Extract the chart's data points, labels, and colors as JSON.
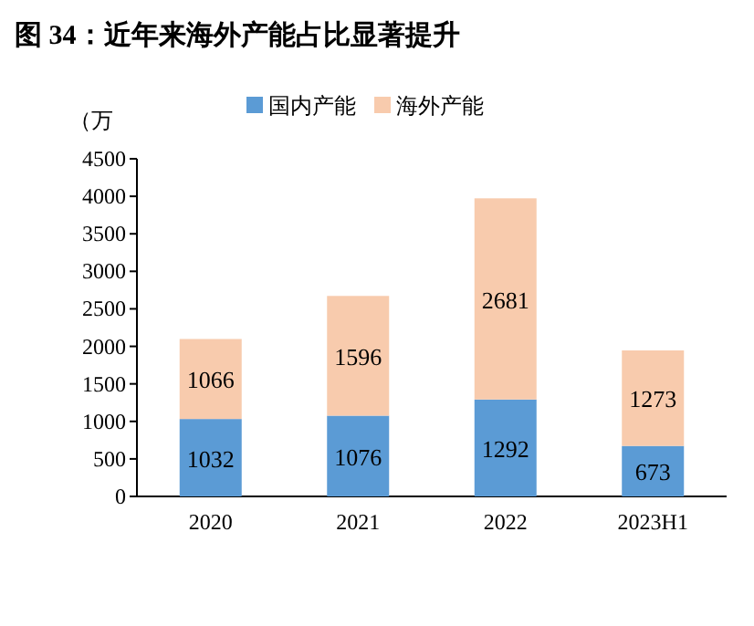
{
  "chart_data": {
    "type": "bar",
    "title": "图 34：近年来海外产能占比显著提升",
    "ylabel": "（万",
    "categories": [
      "2020",
      "2021",
      "2022",
      "2023H1"
    ],
    "series": [
      {
        "name": "国内产能",
        "color": "#5b9bd5",
        "values": [
          1032,
          1076,
          1292,
          673
        ]
      },
      {
        "name": "海外产能",
        "color": "#f8cbad",
        "values": [
          1066,
          1596,
          2681,
          1273
        ]
      }
    ],
    "stacked": true,
    "ylim": [
      0,
      4500
    ],
    "yticks": [
      0,
      500,
      1000,
      1500,
      2000,
      2500,
      3000,
      3500,
      4000,
      4500
    ],
    "data_labels": true,
    "legend": "top"
  }
}
